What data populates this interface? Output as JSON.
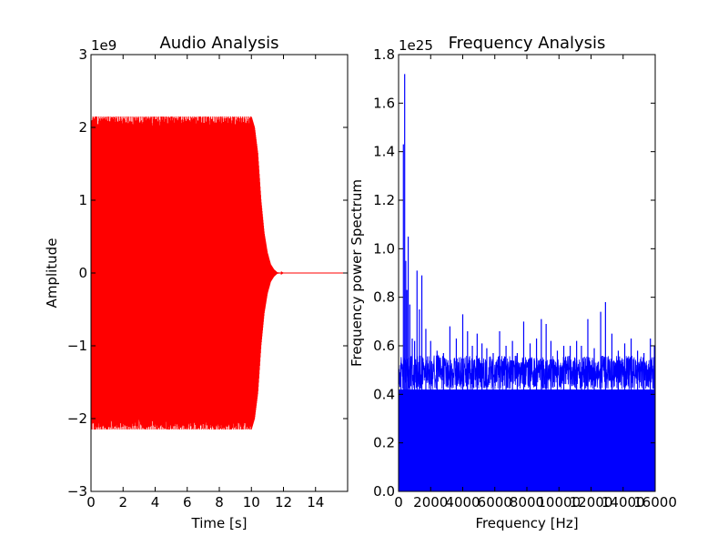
{
  "chart_data": [
    {
      "type": "line",
      "title": "Audio Analysis",
      "xlabel": "Time [s]",
      "ylabel": "Amplitude",
      "y_offset_label": "1e9",
      "xlim": [
        0,
        16
      ],
      "ylim": [
        -3,
        3
      ],
      "xticks": [
        "0",
        "2",
        "4",
        "6",
        "8",
        "10",
        "12",
        "14"
      ],
      "yticks": [
        "−3",
        "−2",
        "−1",
        "0",
        "1",
        "2",
        "3"
      ],
      "color": "#ff0000",
      "envelope": {
        "x": [
          0,
          10.0,
          10.2,
          10.4,
          10.6,
          10.8,
          11.0,
          11.2,
          11.4,
          11.6,
          12.0,
          16.0
        ],
        "amplitude": [
          2.15,
          2.15,
          2.0,
          1.65,
          1.0,
          0.55,
          0.28,
          0.12,
          0.05,
          0.01,
          0.0,
          0.0
        ]
      },
      "grid": false
    },
    {
      "type": "bar",
      "title": "Frequency Analysis",
      "xlabel": "Frequency [Hz]",
      "ylabel": "Frequency power Spectrum",
      "y_offset_label": "1e25",
      "xlim": [
        0,
        16000
      ],
      "ylim": [
        0,
        1.8
      ],
      "xticks": [
        "0",
        "2000",
        "4000",
        "6000",
        "8000",
        "10000",
        "12000",
        "14000",
        "16000"
      ],
      "yticks": [
        "0.0",
        "0.2",
        "0.4",
        "0.6",
        "0.8",
        "1.0",
        "1.2",
        "1.4",
        "1.6",
        "1.8"
      ],
      "color": "#0000ff",
      "peaks": {
        "x": [
          150,
          300,
          380,
          450,
          520,
          600,
          700,
          850,
          1000,
          1150,
          1300,
          1450,
          1700,
          2000,
          2400,
          2800,
          3200,
          3600,
          4000,
          4300,
          4600,
          4900,
          5200,
          5500,
          5900,
          6300,
          6700,
          7100,
          7400,
          7800,
          8200,
          8600,
          8900,
          9200,
          9500,
          9900,
          10300,
          10700,
          11100,
          11400,
          11800,
          12200,
          12600,
          12900,
          13300,
          13700,
          14100,
          14500,
          14900,
          15300,
          15700,
          15950
        ],
        "y": [
          0.53,
          1.43,
          1.72,
          0.95,
          0.83,
          1.05,
          0.77,
          0.63,
          0.62,
          0.91,
          0.75,
          0.89,
          0.67,
          0.62,
          0.58,
          0.57,
          0.68,
          0.63,
          0.73,
          0.66,
          0.6,
          0.65,
          0.61,
          0.59,
          0.57,
          0.66,
          0.6,
          0.62,
          0.57,
          0.7,
          0.61,
          0.63,
          0.71,
          0.69,
          0.62,
          0.58,
          0.6,
          0.6,
          0.62,
          0.6,
          0.71,
          0.59,
          0.74,
          0.78,
          0.65,
          0.58,
          0.61,
          0.63,
          0.58,
          0.57,
          0.63,
          0.6
        ]
      },
      "noise_floor": 0.42,
      "grid": false
    }
  ]
}
